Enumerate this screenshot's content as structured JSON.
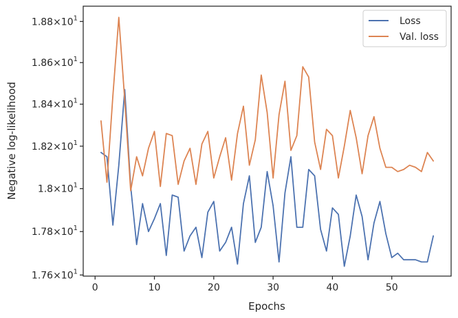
{
  "chart_data": {
    "type": "line",
    "xlabel": "Epochs",
    "ylabel": "Negative log-likelihood",
    "xlim": [
      -2,
      60
    ],
    "ylim": [
      17.595,
      18.875
    ],
    "y_scale": "log",
    "grid": false,
    "legend_position": "top-right",
    "x_ticks": [
      {
        "value": 0,
        "label": "0"
      },
      {
        "value": 10,
        "label": "10"
      },
      {
        "value": 20,
        "label": "20"
      },
      {
        "value": 30,
        "label": "30"
      },
      {
        "value": 40,
        "label": "40"
      },
      {
        "value": 50,
        "label": "50"
      }
    ],
    "y_ticks": [
      {
        "value": 17.6,
        "mantissa": "1.76",
        "exponent": "1"
      },
      {
        "value": 17.8,
        "mantissa": "1.78",
        "exponent": "1"
      },
      {
        "value": 18.0,
        "mantissa": "1.8",
        "exponent": "1"
      },
      {
        "value": 18.2,
        "mantissa": "1.82",
        "exponent": "1"
      },
      {
        "value": 18.4,
        "mantissa": "1.84",
        "exponent": "1"
      },
      {
        "value": 18.6,
        "mantissa": "1.86",
        "exponent": "1"
      },
      {
        "value": 18.8,
        "mantissa": "1.88",
        "exponent": "1"
      }
    ],
    "x": [
      1,
      2,
      3,
      4,
      5,
      6,
      7,
      8,
      9,
      10,
      11,
      12,
      13,
      14,
      15,
      16,
      17,
      18,
      19,
      20,
      21,
      22,
      23,
      24,
      25,
      26,
      27,
      28,
      29,
      30,
      31,
      32,
      33,
      34,
      35,
      36,
      37,
      38,
      39,
      40,
      41,
      42,
      43,
      44,
      45,
      46,
      47,
      48,
      49,
      50,
      51,
      52,
      53,
      54,
      55,
      56,
      57
    ],
    "series": [
      {
        "name": "Loss",
        "color": "#4c72b0",
        "values": [
          18.17,
          18.15,
          17.83,
          18.11,
          18.47,
          18.01,
          17.74,
          17.93,
          17.8,
          17.86,
          17.93,
          17.69,
          17.97,
          17.96,
          17.71,
          17.78,
          17.82,
          17.68,
          17.89,
          17.94,
          17.71,
          17.75,
          17.82,
          17.65,
          17.93,
          18.06,
          17.75,
          17.82,
          18.08,
          17.92,
          17.66,
          17.98,
          18.15,
          17.82,
          17.82,
          18.09,
          18.06,
          17.81,
          17.71,
          17.91,
          17.88,
          17.64,
          17.78,
          17.97,
          17.87,
          17.67,
          17.84,
          17.94,
          17.79,
          17.68,
          17.7,
          17.67,
          17.67,
          17.67,
          17.66,
          17.66,
          17.78
        ]
      },
      {
        "name": "Val. loss",
        "color": "#dd8452",
        "values": [
          18.32,
          18.03,
          18.44,
          18.82,
          18.42,
          17.99,
          18.15,
          18.06,
          18.19,
          18.27,
          18.01,
          18.26,
          18.25,
          18.02,
          18.13,
          18.19,
          18.02,
          18.21,
          18.27,
          18.05,
          18.15,
          18.24,
          18.04,
          18.26,
          18.39,
          18.11,
          18.23,
          18.54,
          18.36,
          18.05,
          18.35,
          18.51,
          18.18,
          18.25,
          18.58,
          18.53,
          18.22,
          18.09,
          18.28,
          18.25,
          18.05,
          18.2,
          18.37,
          18.24,
          18.07,
          18.25,
          18.34,
          18.19,
          18.1,
          18.1,
          18.08,
          18.09,
          18.11,
          18.1,
          18.08,
          18.17,
          18.13
        ]
      }
    ]
  }
}
